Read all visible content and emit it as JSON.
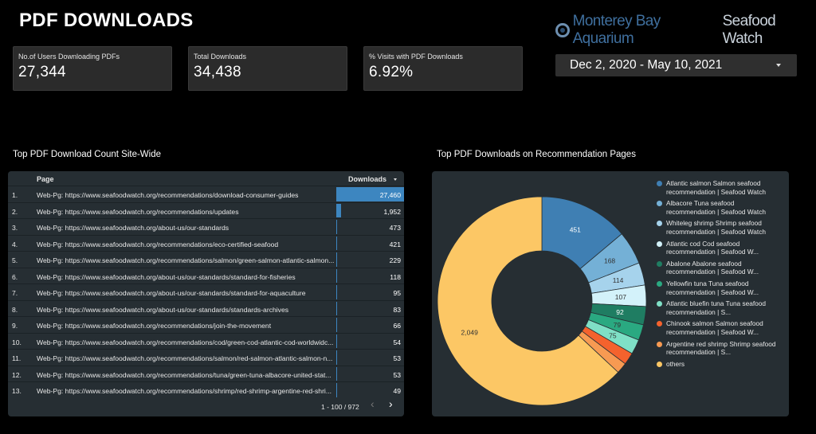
{
  "header": {
    "title": "PDF DOWNLOADS"
  },
  "logo": {
    "part1": "Monterey Bay Aquarium",
    "part2": "Seafood Watch"
  },
  "kpis": [
    {
      "label": "No.of Users Downloading PDFs",
      "value": "27,344"
    },
    {
      "label": "Total Downloads",
      "value": "34,438"
    },
    {
      "label": "% Visits with PDF Downloads",
      "value": "6.92%"
    }
  ],
  "date_range": {
    "value": "Dec 2, 2020 - May 10, 2021"
  },
  "table": {
    "title": "Top PDF Download Count Site-Wide",
    "col_page": "Page",
    "col_downloads": "Downloads",
    "max_downloads": 27460,
    "bar_color": "#3d86c0",
    "rows": [
      {
        "idx": "1.",
        "page": "Web-Pg: https://www.seafoodwatch.org/recommendations/download-consumer-guides",
        "downloads": 27460,
        "display": "27,460"
      },
      {
        "idx": "2.",
        "page": "Web-Pg: https://www.seafoodwatch.org/recommendations/updates",
        "downloads": 1952,
        "display": "1,952"
      },
      {
        "idx": "3.",
        "page": "Web-Pg: https://www.seafoodwatch.org/about-us/our-standards",
        "downloads": 473,
        "display": "473"
      },
      {
        "idx": "4.",
        "page": "Web-Pg: https://www.seafoodwatch.org/recommendations/eco-certified-seafood",
        "downloads": 421,
        "display": "421"
      },
      {
        "idx": "5.",
        "page": "Web-Pg: https://www.seafoodwatch.org/recommendations/salmon/green-salmon-atlantic-salmon...",
        "downloads": 229,
        "display": "229"
      },
      {
        "idx": "6.",
        "page": "Web-Pg: https://www.seafoodwatch.org/about-us/our-standards/standard-for-fisheries",
        "downloads": 118,
        "display": "118"
      },
      {
        "idx": "7.",
        "page": "Web-Pg: https://www.seafoodwatch.org/about-us/our-standards/standard-for-aquaculture",
        "downloads": 95,
        "display": "95"
      },
      {
        "idx": "8.",
        "page": "Web-Pg: https://www.seafoodwatch.org/about-us/our-standards/standards-archives",
        "downloads": 83,
        "display": "83"
      },
      {
        "idx": "9.",
        "page": "Web-Pg: https://www.seafoodwatch.org/recommendations/join-the-movement",
        "downloads": 66,
        "display": "66"
      },
      {
        "idx": "10.",
        "page": "Web-Pg: https://www.seafoodwatch.org/recommendations/cod/green-cod-atlantic-cod-worldwidc...",
        "downloads": 54,
        "display": "54"
      },
      {
        "idx": "11.",
        "page": "Web-Pg: https://www.seafoodwatch.org/recommendations/salmon/red-salmon-atlantic-salmon-n...",
        "downloads": 53,
        "display": "53"
      },
      {
        "idx": "12.",
        "page": "Web-Pg: https://www.seafoodwatch.org/recommendations/tuna/green-tuna-albacore-united-stat...",
        "downloads": 53,
        "display": "53"
      },
      {
        "idx": "13.",
        "page": "Web-Pg: https://www.seafoodwatch.org/recommendations/shrimp/red-shrimp-argentine-red-shri...",
        "downloads": 49,
        "display": "49"
      }
    ],
    "pagination": "1 - 100 / 972",
    "prev_icon": "‹",
    "next_icon": "›"
  },
  "donut": {
    "title": "Top PDF Downloads on Recommendation Pages",
    "chart_data": {
      "type": "pie",
      "hole": true,
      "slices": [
        {
          "label": "Atlantic salmon Salmon seafood recommendation | Seafood Watch",
          "value": 451,
          "display": "451",
          "color": "#3f7fb3"
        },
        {
          "label": "Albacore Tuna seafood recommendation | Seafood Watch",
          "value": 168,
          "display": "168",
          "color": "#74b0d6"
        },
        {
          "label": "Whiteleg shrimp Shrimp seafood recommendation | Seafood Watch",
          "value": 114,
          "display": "114",
          "color": "#a6d3ec"
        },
        {
          "label": "Atlantic cod Cod seafood recommendation | Seafood W...",
          "value": 107,
          "display": "107",
          "color": "#d3f2fa"
        },
        {
          "label": "Abalone Abalone seafood recommendation | Seafood W...",
          "value": 92,
          "display": "92",
          "color": "#1f7d62"
        },
        {
          "label": "Yellowfin tuna Tuna seafood recommendation | Seafood W...",
          "value": 79,
          "display": "79",
          "color": "#2aa981"
        },
        {
          "label": "Atlantic bluefin tuna Tuna seafood recommendation | S...",
          "value": 75,
          "display": "75",
          "color": "#7fe0c6"
        },
        {
          "label": "Chinook salmon Salmon seafood recommendation | Seafood W...",
          "value": 61,
          "display": "",
          "color": "#f4622d"
        },
        {
          "label": "Argentine red shrimp Shrimp seafood recommendation | S...",
          "value": 55,
          "display": "",
          "color": "#f79a52"
        },
        {
          "label": "others",
          "value": 2049,
          "display": "2,049",
          "color": "#fcc765"
        }
      ]
    }
  }
}
